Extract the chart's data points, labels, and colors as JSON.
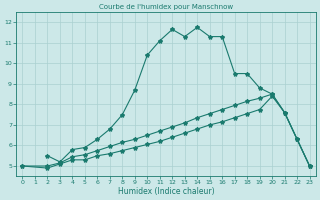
{
  "line1_x": [
    2,
    3,
    4,
    5,
    6,
    7,
    8,
    9,
    10,
    11,
    12,
    13,
    14,
    15,
    16,
    17,
    18,
    19,
    20,
    21,
    22,
    23
  ],
  "line1_y": [
    5.5,
    5.2,
    5.8,
    5.9,
    6.3,
    6.8,
    7.5,
    8.7,
    10.4,
    11.1,
    11.65,
    11.3,
    11.75,
    11.3,
    11.3,
    9.5,
    9.5,
    8.8,
    8.5,
    7.6,
    6.3,
    5.0
  ],
  "line2_x": [
    0,
    2,
    3,
    4,
    5,
    6,
    7,
    8,
    9,
    10,
    11,
    12,
    13,
    14,
    15,
    16,
    17,
    18,
    19,
    20,
    21,
    22,
    23
  ],
  "line2_y": [
    5.0,
    5.0,
    5.15,
    5.45,
    5.55,
    5.75,
    5.95,
    6.15,
    6.3,
    6.5,
    6.7,
    6.9,
    7.1,
    7.35,
    7.55,
    7.75,
    7.95,
    8.15,
    8.3,
    8.5,
    7.6,
    6.3,
    5.0
  ],
  "line3_x": [
    0,
    2,
    3,
    4,
    5,
    6,
    7,
    8,
    9,
    10,
    11,
    12,
    13,
    14,
    15,
    16,
    17,
    18,
    19,
    20,
    21,
    22,
    23
  ],
  "line3_y": [
    5.0,
    4.9,
    5.1,
    5.3,
    5.3,
    5.5,
    5.6,
    5.75,
    5.9,
    6.05,
    6.2,
    6.4,
    6.6,
    6.8,
    7.0,
    7.15,
    7.35,
    7.55,
    7.75,
    8.4,
    7.6,
    6.3,
    5.0
  ],
  "color": "#1a7a6e",
  "bg_color": "#cce8e8",
  "grid_color": "#aad0d0",
  "xlabel": "Humidex (Indice chaleur)",
  "title": "Courbe de l'humidex pour Manschnow",
  "xlim": [
    -0.5,
    23.5
  ],
  "ylim": [
    4.5,
    12.5
  ],
  "yticks": [
    5,
    6,
    7,
    8,
    9,
    10,
    11,
    12
  ],
  "xticks": [
    0,
    1,
    2,
    3,
    4,
    5,
    6,
    7,
    8,
    9,
    10,
    11,
    12,
    13,
    14,
    15,
    16,
    17,
    18,
    19,
    20,
    21,
    22,
    23
  ]
}
